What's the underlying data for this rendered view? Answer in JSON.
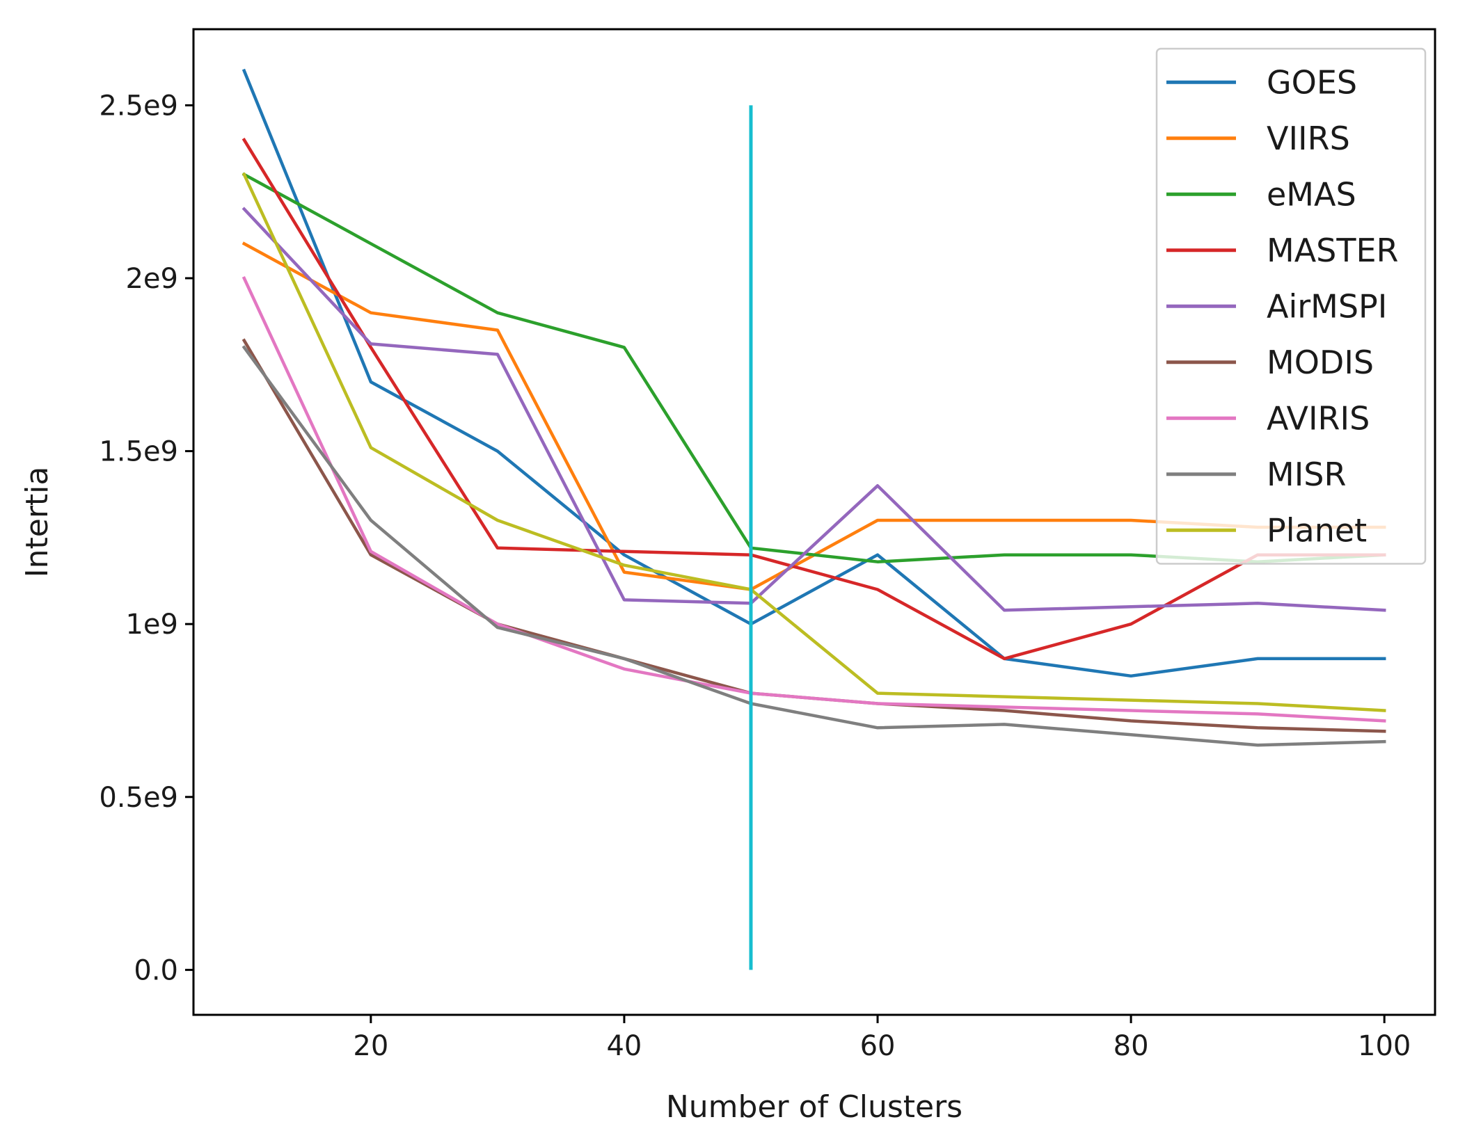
{
  "chart_data": {
    "type": "line",
    "title": "",
    "xlabel": "Number of Clusters",
    "ylabel": "Intertia",
    "xlim": [
      6,
      104
    ],
    "ylim": [
      -0.13,
      2.72
    ],
    "x": [
      10,
      20,
      30,
      40,
      50,
      60,
      70,
      80,
      90,
      100
    ],
    "x_ticks": [
      {
        "value": 20,
        "label": "20"
      },
      {
        "value": 40,
        "label": "40"
      },
      {
        "value": 60,
        "label": "60"
      },
      {
        "value": 80,
        "label": "80"
      },
      {
        "value": 100,
        "label": "100"
      }
    ],
    "y_ticks": [
      {
        "value": 0,
        "label": "0.0"
      },
      {
        "value": 0.5,
        "label": "0.5e9"
      },
      {
        "value": 1.0,
        "label": "1e9"
      },
      {
        "value": 1.5,
        "label": "1.5e9"
      },
      {
        "value": 2.0,
        "label": "2e9"
      },
      {
        "value": 2.5,
        "label": "2.5e9"
      }
    ],
    "series": [
      {
        "name": "GOES",
        "color": "#1f77b4",
        "values": [
          2.6,
          1.7,
          1.5,
          1.2,
          1.0,
          1.2,
          0.9,
          0.85,
          0.9,
          0.9
        ]
      },
      {
        "name": "VIIRS",
        "color": "#ff7f0e",
        "values": [
          2.1,
          1.9,
          1.85,
          1.15,
          1.1,
          1.3,
          1.3,
          1.3,
          1.28,
          1.28
        ]
      },
      {
        "name": "eMAS",
        "color": "#2ca02c",
        "values": [
          2.3,
          2.1,
          1.9,
          1.8,
          1.22,
          1.18,
          1.2,
          1.2,
          1.18,
          1.2
        ]
      },
      {
        "name": "MASTER",
        "color": "#d62728",
        "values": [
          2.4,
          1.8,
          1.22,
          1.21,
          1.2,
          1.1,
          0.9,
          1.0,
          1.2,
          1.2
        ]
      },
      {
        "name": "AirMSPI",
        "color": "#9467bd",
        "values": [
          2.2,
          1.81,
          1.78,
          1.07,
          1.06,
          1.4,
          1.04,
          1.05,
          1.06,
          1.04
        ]
      },
      {
        "name": "MODIS",
        "color": "#8c564b",
        "values": [
          1.82,
          1.2,
          1.0,
          0.9,
          0.8,
          0.77,
          0.75,
          0.72,
          0.7,
          0.69
        ]
      },
      {
        "name": "AVIRIS",
        "color": "#e377c2",
        "values": [
          2.0,
          1.21,
          1.0,
          0.87,
          0.8,
          0.77,
          0.76,
          0.75,
          0.74,
          0.72
        ]
      },
      {
        "name": "MISR",
        "color": "#7f7f7f",
        "values": [
          1.8,
          1.3,
          0.99,
          0.9,
          0.77,
          0.7,
          0.71,
          0.68,
          0.65,
          0.66
        ]
      },
      {
        "name": "Planet",
        "color": "#bcbd22",
        "values": [
          2.3,
          1.51,
          1.3,
          1.17,
          1.1,
          0.8,
          0.79,
          0.78,
          0.77,
          0.75
        ]
      }
    ],
    "annotations": [
      {
        "type": "vline",
        "x": 50,
        "y_from": 0,
        "y_to": 2.5,
        "color": "#17becf"
      }
    ],
    "legend": {
      "placement": "top-right"
    },
    "grid": false
  }
}
